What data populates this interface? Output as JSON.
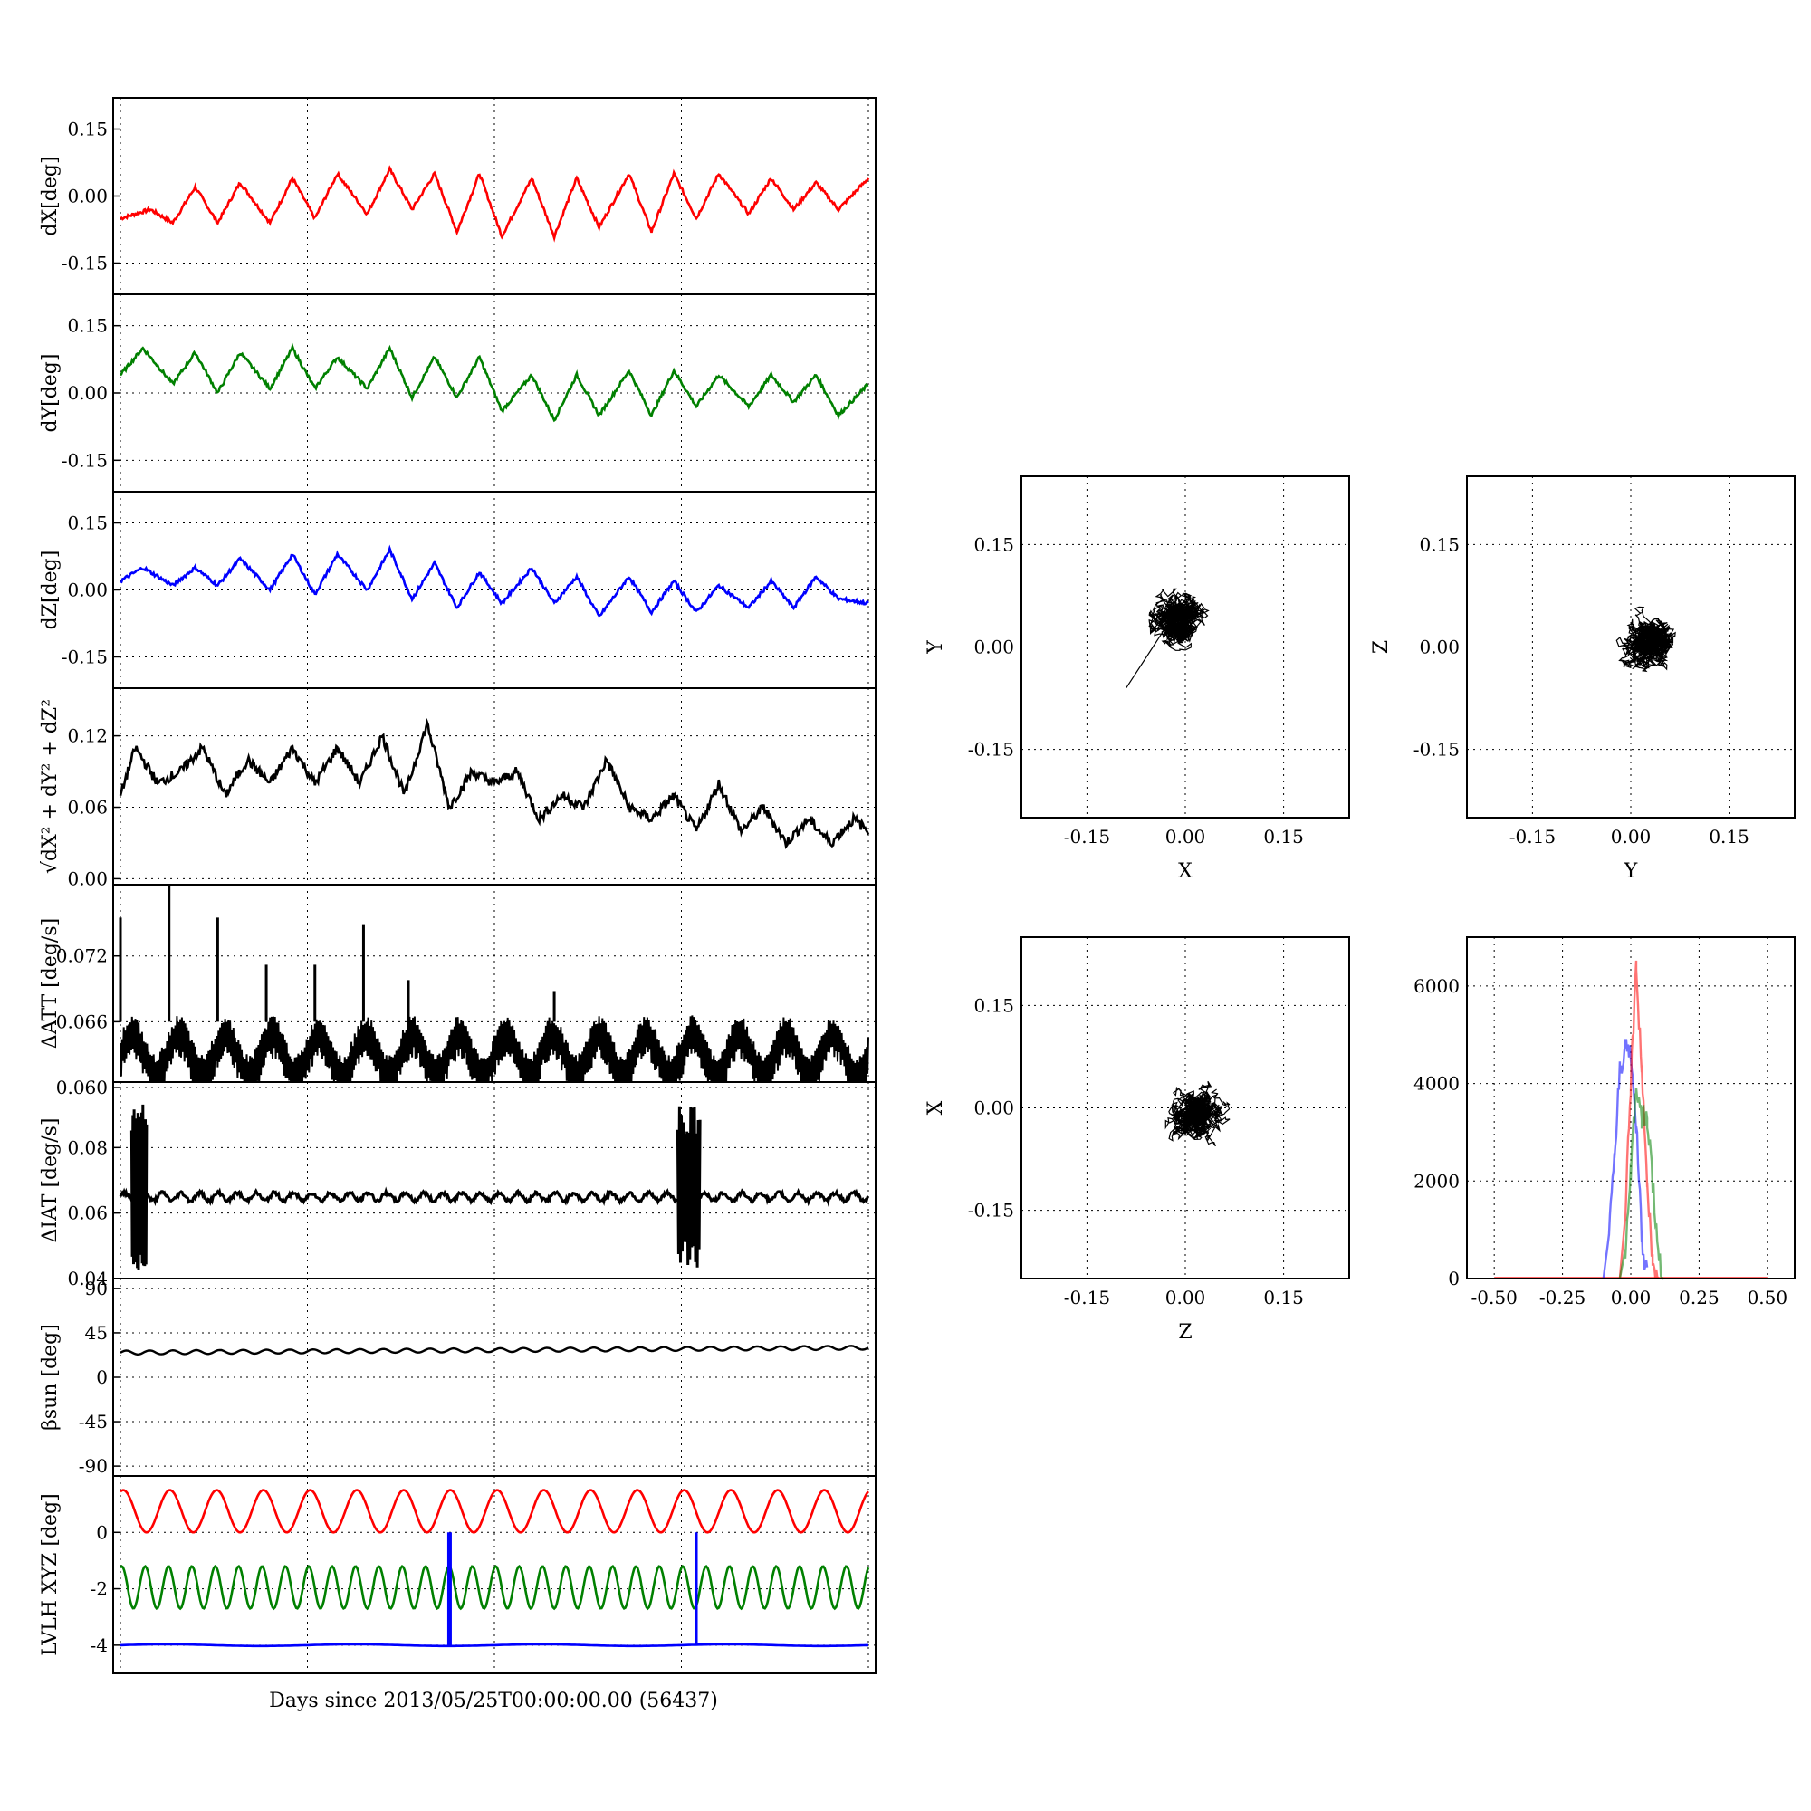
{
  "colors": {
    "red": "#ff0000",
    "green": "#008000",
    "blue": "#0000ff",
    "black": "#000000"
  },
  "xlabel": "Days since 2013/05/25T00:00:00.00 (56437)",
  "chart_data": [
    {
      "id": "dx",
      "type": "line",
      "ylabel": "dX[deg]",
      "ylim": [
        -0.22,
        0.22
      ],
      "yticks": [
        "0.15",
        "0.00",
        "-0.15"
      ],
      "yticks_values": [
        0.15,
        0.0,
        -0.15
      ],
      "grid": true,
      "series": [
        {
          "color": "red"
        }
      ],
      "x": [
        0,
        0.04,
        0.07,
        0.1,
        0.13,
        0.16,
        0.2,
        0.23,
        0.26,
        0.29,
        0.33,
        0.36,
        0.39,
        0.42,
        0.45,
        0.48,
        0.51,
        0.55,
        0.58,
        0.61,
        0.64,
        0.68,
        0.71,
        0.74,
        0.77,
        0.8,
        0.84,
        0.87,
        0.9,
        0.93,
        0.96,
        1.0
      ],
      "values": [
        -0.05,
        -0.03,
        -0.06,
        0.02,
        -0.06,
        0.03,
        -0.06,
        0.04,
        -0.05,
        0.05,
        -0.04,
        0.06,
        -0.03,
        0.05,
        -0.08,
        0.05,
        -0.09,
        0.04,
        -0.09,
        0.04,
        -0.07,
        0.05,
        -0.08,
        0.05,
        -0.05,
        0.05,
        -0.04,
        0.04,
        -0.03,
        0.03,
        -0.03,
        0.04
      ]
    },
    {
      "id": "dy",
      "type": "line",
      "ylabel": "dY[deg]",
      "ylim": [
        -0.22,
        0.22
      ],
      "yticks": [
        "0.15",
        "0.00",
        "-0.15"
      ],
      "yticks_values": [
        0.15,
        0.0,
        -0.15
      ],
      "grid": true,
      "series": [
        {
          "color": "green"
        }
      ],
      "x": [
        0,
        0.03,
        0.07,
        0.1,
        0.13,
        0.16,
        0.2,
        0.23,
        0.26,
        0.29,
        0.33,
        0.36,
        0.39,
        0.42,
        0.45,
        0.48,
        0.51,
        0.55,
        0.58,
        0.61,
        0.64,
        0.68,
        0.71,
        0.74,
        0.77,
        0.8,
        0.84,
        0.87,
        0.9,
        0.93,
        0.96,
        1.0
      ],
      "values": [
        0.04,
        0.1,
        0.02,
        0.09,
        0.0,
        0.09,
        0.01,
        0.1,
        0.01,
        0.08,
        0.01,
        0.1,
        -0.01,
        0.08,
        -0.01,
        0.08,
        -0.04,
        0.04,
        -0.06,
        0.04,
        -0.05,
        0.05,
        -0.05,
        0.05,
        -0.03,
        0.04,
        -0.03,
        0.04,
        -0.02,
        0.04,
        -0.05,
        0.02
      ]
    },
    {
      "id": "dz",
      "type": "line",
      "ylabel": "dZ[deg]",
      "ylim": [
        -0.22,
        0.22
      ],
      "yticks": [
        "0.15",
        "0.00",
        "-0.15"
      ],
      "yticks_values": [
        0.15,
        0.0,
        -0.15
      ],
      "grid": true,
      "series": [
        {
          "color": "blue"
        }
      ],
      "x": [
        0,
        0.03,
        0.07,
        0.1,
        0.13,
        0.16,
        0.2,
        0.23,
        0.26,
        0.29,
        0.33,
        0.36,
        0.39,
        0.42,
        0.45,
        0.48,
        0.51,
        0.55,
        0.58,
        0.61,
        0.64,
        0.68,
        0.71,
        0.74,
        0.77,
        0.8,
        0.84,
        0.87,
        0.9,
        0.93,
        0.96,
        1.0
      ],
      "values": [
        0.02,
        0.05,
        0.01,
        0.05,
        0.01,
        0.07,
        0.0,
        0.08,
        -0.01,
        0.08,
        0.0,
        0.09,
        -0.02,
        0.06,
        -0.04,
        0.04,
        -0.03,
        0.05,
        -0.03,
        0.03,
        -0.06,
        0.03,
        -0.05,
        0.02,
        -0.05,
        0.01,
        -0.04,
        0.02,
        -0.04,
        0.03,
        -0.02,
        -0.03
      ]
    },
    {
      "id": "mag",
      "type": "line",
      "ylabel": "√dX² + dY² + dZ²",
      "ylim": [
        -0.005,
        0.16
      ],
      "yticks": [
        "0.12",
        "0.06",
        "0.00"
      ],
      "yticks_values": [
        0.12,
        0.06,
        0.0
      ],
      "grid": true,
      "series": [
        {
          "color": "black"
        }
      ],
      "x": [
        0,
        0.02,
        0.05,
        0.08,
        0.11,
        0.14,
        0.17,
        0.2,
        0.23,
        0.26,
        0.29,
        0.32,
        0.35,
        0.38,
        0.41,
        0.44,
        0.47,
        0.5,
        0.53,
        0.56,
        0.59,
        0.62,
        0.65,
        0.68,
        0.71,
        0.74,
        0.77,
        0.8,
        0.83,
        0.86,
        0.89,
        0.92,
        0.95,
        0.98,
        1.0
      ],
      "values": [
        0.07,
        0.11,
        0.08,
        0.09,
        0.11,
        0.07,
        0.1,
        0.08,
        0.11,
        0.08,
        0.11,
        0.08,
        0.12,
        0.07,
        0.13,
        0.06,
        0.09,
        0.08,
        0.09,
        0.05,
        0.07,
        0.06,
        0.1,
        0.06,
        0.05,
        0.07,
        0.04,
        0.08,
        0.04,
        0.06,
        0.03,
        0.05,
        0.03,
        0.05,
        0.04
      ]
    },
    {
      "id": "att",
      "type": "line",
      "ylabel": "ΔATT [deg/s]",
      "ylim": [
        0.0605,
        0.0785
      ],
      "yticks": [
        "0.072",
        "0.066",
        "0.060"
      ],
      "yticks_values": [
        0.072,
        0.066,
        0.06
      ],
      "grid": true,
      "series": [
        {
          "color": "black"
        }
      ],
      "baseline_range": [
        0.0615,
        0.0665
      ],
      "spikes": [
        {
          "x": 0.0,
          "y": 0.0755
        },
        {
          "x": 0.065,
          "y": 0.0785
        },
        {
          "x": 0.13,
          "y": 0.0755
        },
        {
          "x": 0.195,
          "y": 0.0712
        },
        {
          "x": 0.26,
          "y": 0.0712
        },
        {
          "x": 0.325,
          "y": 0.0749
        },
        {
          "x": 0.385,
          "y": 0.0698
        },
        {
          "x": 0.58,
          "y": 0.0688
        }
      ]
    },
    {
      "id": "iat",
      "type": "line",
      "ylabel": "ΔIAT [deg/s]",
      "ylim": [
        0.04,
        0.1
      ],
      "yticks": [
        "0.08",
        "0.06",
        "0.04"
      ],
      "yticks_values": [
        0.08,
        0.06,
        0.04
      ],
      "grid": true,
      "series": [
        {
          "color": "black"
        }
      ],
      "baseline_range": [
        0.063,
        0.067
      ],
      "bursts": [
        {
          "x_range": [
            0.015,
            0.035
          ],
          "y_range": [
            0.042,
            0.094
          ]
        },
        {
          "x_range": [
            0.745,
            0.775
          ],
          "y_range": [
            0.042,
            0.093
          ]
        }
      ]
    },
    {
      "id": "beta",
      "type": "line",
      "ylabel": "βsun [deg]",
      "ylim": [
        -100,
        100
      ],
      "yticks": [
        "90",
        "45",
        "0",
        "-45",
        "-90"
      ],
      "yticks_values": [
        90,
        45,
        0,
        -45,
        -90
      ],
      "grid": true,
      "series": [
        {
          "color": "black"
        }
      ],
      "x": [
        0,
        1
      ],
      "values": [
        25,
        30
      ],
      "oscillation_amplitude": 2
    },
    {
      "id": "lvlh",
      "type": "line",
      "ylabel": "LVLH XYZ [deg]",
      "ylim": [
        -5,
        2
      ],
      "yticks": [
        "0",
        "-2",
        "-4"
      ],
      "yticks_values": [
        0,
        -2,
        -4
      ],
      "grid": true,
      "series": [
        {
          "color": "red",
          "range": [
            0.0,
            1.5
          ],
          "cycles": 16
        },
        {
          "color": "green",
          "range": [
            -2.7,
            -1.2
          ],
          "cycles": 32
        },
        {
          "color": "blue",
          "level": -4.0,
          "spikes": [
            {
              "x": 0.44,
              "range": [
                -4.0,
                0.0
              ]
            },
            {
              "x": 0.77,
              "range": [
                -4.0,
                0.0
              ]
            }
          ]
        }
      ]
    },
    {
      "id": "xy",
      "type": "scatter",
      "xlabel": "X",
      "ylabel": "Y",
      "xlim": [
        -0.25,
        0.25
      ],
      "ylim": [
        -0.25,
        0.25
      ],
      "xticks": [
        "-0.15",
        "0.00",
        "0.15"
      ],
      "yticks": [
        "0.15",
        "0.00",
        "-0.15"
      ],
      "grid": true,
      "cluster_center": [
        -0.01,
        0.04
      ],
      "cluster_spread": [
        0.045,
        0.045
      ],
      "tail_end": [
        -0.09,
        -0.06
      ]
    },
    {
      "id": "yz",
      "type": "scatter",
      "xlabel": "Y",
      "ylabel": "Z",
      "xlim": [
        -0.25,
        0.25
      ],
      "ylim": [
        -0.25,
        0.25
      ],
      "xticks": [
        "-0.15",
        "0.00",
        "0.15"
      ],
      "yticks": [
        "0.15",
        "0.00",
        "-0.15"
      ],
      "grid": true,
      "cluster_center": [
        0.03,
        0.01
      ],
      "cluster_spread": [
        0.055,
        0.05
      ]
    },
    {
      "id": "zx",
      "type": "scatter",
      "xlabel": "Z",
      "ylabel": "X",
      "xlim": [
        -0.25,
        0.25
      ],
      "ylim": [
        -0.25,
        0.25
      ],
      "xticks": [
        "-0.15",
        "0.00",
        "0.15"
      ],
      "yticks": [
        "0.15",
        "0.00",
        "-0.15"
      ],
      "grid": true,
      "cluster_center": [
        0.02,
        -0.01
      ],
      "cluster_spread": [
        0.05,
        0.05
      ]
    },
    {
      "id": "hist",
      "type": "histogram",
      "xlim": [
        -0.6,
        0.6
      ],
      "ylim": [
        0,
        7000
      ],
      "xticks": [
        "-0.50",
        "-0.25",
        "0.00",
        "0.25",
        "0.50"
      ],
      "xticks_values": [
        -0.5,
        -0.25,
        0.0,
        0.25,
        0.5
      ],
      "yticks": [
        "6000",
        "4000",
        "2000",
        "0"
      ],
      "yticks_values": [
        6000,
        4000,
        2000,
        0
      ],
      "grid": true,
      "series": [
        {
          "color": "blue",
          "x": [
            -0.1,
            -0.08,
            -0.06,
            -0.04,
            -0.02,
            0.0,
            0.02,
            0.04,
            0.06
          ],
          "values": [
            0,
            900,
            2400,
            4300,
            4700,
            4500,
            3200,
            800,
            0
          ]
        },
        {
          "color": "red",
          "x": [
            -0.04,
            -0.02,
            0.0,
            0.02,
            0.04,
            0.06,
            0.08,
            0.1
          ],
          "values": [
            0,
            1300,
            4000,
            6400,
            4200,
            1800,
            400,
            0
          ]
        },
        {
          "color": "green",
          "x": [
            -0.04,
            -0.02,
            0.0,
            0.02,
            0.04,
            0.06,
            0.08,
            0.1,
            0.12
          ],
          "values": [
            0,
            600,
            2200,
            3900,
            3300,
            3300,
            2000,
            600,
            0
          ]
        }
      ]
    }
  ]
}
